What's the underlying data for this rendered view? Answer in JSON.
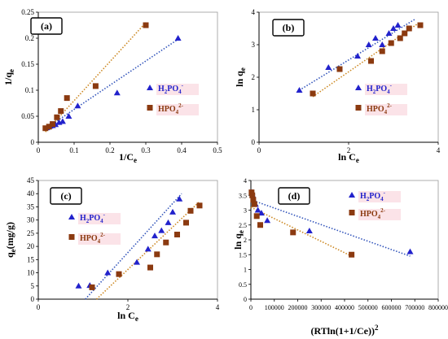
{
  "figure": {
    "colors": {
      "blue": "#2222cc",
      "brown": "#8b3a10",
      "blue_line": "#3355bb",
      "brown_line": "#cc8822",
      "label_bg": "#fbe3e8"
    }
  },
  "chart_data": [
    {
      "id": "a",
      "type": "scatter",
      "panel_label": "(a)",
      "xlabel": "1/C",
      "xlabel_sub": "e",
      "ylabel": "1/q",
      "ylabel_sub": "e",
      "xlim": [
        0,
        0.5
      ],
      "ylim": [
        0,
        0.25
      ],
      "xticks": [
        0,
        0.1,
        0.2,
        0.3,
        0.4,
        0.5
      ],
      "xtick_labels": [
        "0",
        "0.1",
        "0.2",
        "0.3",
        "0.4",
        "0.5"
      ],
      "yticks": [
        0,
        0.05,
        0.1,
        0.15,
        0.2,
        0.25
      ],
      "ytick_labels": [
        "0",
        "0.05",
        "0.1",
        "0.15",
        "0.2",
        "0.25"
      ],
      "legend": [
        {
          "label": "H",
          "sub1": "2",
          "mid": "PO",
          "sub2": "4",
          "sup": "-",
          "marker": "triangle",
          "color": "#2222cc"
        },
        {
          "label": "HPO",
          "sub1": "4",
          "mid": "",
          "sub2": "",
          "sup": "2-",
          "marker": "square",
          "color": "#8b3a10"
        }
      ],
      "series": [
        {
          "name": "H2PO4-",
          "marker": "triangle",
          "color": "#2222cc",
          "x": [
            0.024,
            0.033,
            0.04,
            0.048,
            0.058,
            0.068,
            0.085,
            0.11,
            0.22,
            0.39
          ],
          "y": [
            0.028,
            0.031,
            0.032,
            0.034,
            0.038,
            0.04,
            0.05,
            0.07,
            0.095,
            0.2
          ]
        },
        {
          "name": "HPO42-",
          "marker": "square",
          "color": "#8b3a10",
          "x": [
            0.02,
            0.03,
            0.04,
            0.052,
            0.063,
            0.08,
            0.16,
            0.3
          ],
          "y": [
            0.027,
            0.03,
            0.035,
            0.048,
            0.06,
            0.085,
            0.108,
            0.225
          ]
        }
      ],
      "trendlines": [
        {
          "color": "#3355bb",
          "x": [
            0.02,
            0.39
          ],
          "y": [
            0.026,
            0.198
          ]
        },
        {
          "color": "#cc8822",
          "x": [
            0.02,
            0.3
          ],
          "y": [
            0.02,
            0.23
          ]
        }
      ]
    },
    {
      "id": "b",
      "type": "scatter",
      "panel_label": "(b)",
      "xlabel": "ln C",
      "xlabel_sub": "e",
      "ylabel": "ln q",
      "ylabel_sub": "e",
      "xlim": [
        0,
        4
      ],
      "ylim": [
        0,
        4
      ],
      "xticks": [
        0,
        2,
        4
      ],
      "xtick_labels": [
        "0",
        "2",
        "4"
      ],
      "yticks": [
        0,
        1,
        2,
        3,
        4
      ],
      "ytick_labels": [
        "0",
        "1",
        "2",
        "3",
        "4"
      ],
      "legend": [
        {
          "label": "H",
          "sub1": "2",
          "mid": "PO",
          "sub2": "4",
          "sup": "-",
          "marker": "triangle",
          "color": "#2222cc"
        },
        {
          "label": "HPO",
          "sub1": "4",
          "mid": "",
          "sub2": "",
          "sup": "2-",
          "marker": "square",
          "color": "#8b3a10"
        }
      ],
      "series": [
        {
          "name": "H2PO4-",
          "marker": "triangle",
          "color": "#2222cc",
          "x": [
            0.9,
            1.55,
            2.2,
            2.45,
            2.6,
            2.75,
            2.9,
            3.0,
            3.1
          ],
          "y": [
            1.6,
            2.3,
            2.65,
            3.0,
            3.2,
            3.0,
            3.35,
            3.5,
            3.6
          ]
        },
        {
          "name": "HPO42-",
          "marker": "square",
          "color": "#8b3a10",
          "x": [
            1.2,
            1.8,
            2.5,
            2.75,
            2.95,
            3.15,
            3.25,
            3.35,
            3.6
          ],
          "y": [
            1.5,
            2.25,
            2.5,
            2.8,
            3.05,
            3.2,
            3.35,
            3.5,
            3.6
          ]
        }
      ],
      "trendlines": [
        {
          "color": "#3355bb",
          "x": [
            0.9,
            3.5
          ],
          "y": [
            1.6,
            3.8
          ]
        },
        {
          "color": "#cc8822",
          "x": [
            1.2,
            3.6
          ],
          "y": [
            1.4,
            3.7
          ]
        }
      ]
    },
    {
      "id": "c",
      "type": "scatter",
      "panel_label": "(c)",
      "xlabel": "ln C",
      "xlabel_sub": "e",
      "ylabel": "q",
      "ylabel_sub": "e",
      "ylabel_suffix": "(mg/g)",
      "xlim": [
        0,
        4
      ],
      "ylim": [
        0,
        45
      ],
      "xticks": [
        0,
        2,
        4
      ],
      "xtick_labels": [
        "0",
        "2",
        "4"
      ],
      "yticks": [
        0,
        5,
        10,
        15,
        20,
        25,
        30,
        35,
        40,
        45
      ],
      "ytick_labels": [
        "0",
        "5",
        "10",
        "15",
        "20",
        "25",
        "30",
        "35",
        "40",
        "45"
      ],
      "legend": [
        {
          "label": "H",
          "sub1": "2",
          "mid": "PO",
          "sub2": "4",
          "sup": "-",
          "marker": "triangle",
          "color": "#2222cc"
        },
        {
          "label": "HPO",
          "sub1": "4",
          "mid": "",
          "sub2": "",
          "sup": "2-",
          "marker": "square",
          "color": "#8b3a10"
        }
      ],
      "series": [
        {
          "name": "H2PO4-",
          "marker": "triangle",
          "color": "#2222cc",
          "x": [
            0.9,
            1.15,
            1.55,
            2.2,
            2.45,
            2.6,
            2.75,
            2.9,
            3.0,
            3.15
          ],
          "y": [
            5,
            5.2,
            10,
            14,
            19,
            24,
            26,
            29,
            33,
            38
          ]
        },
        {
          "name": "HPO42-",
          "marker": "square",
          "color": "#8b3a10",
          "x": [
            1.2,
            1.8,
            2.5,
            2.65,
            2.85,
            3.1,
            3.3,
            3.4,
            3.6
          ],
          "y": [
            4.5,
            9.5,
            12,
            17,
            21.5,
            24.5,
            29,
            33.5,
            35.5
          ]
        }
      ],
      "trendlines": [
        {
          "color": "#3355bb",
          "x": [
            1.05,
            3.2
          ],
          "y": [
            0,
            40
          ]
        },
        {
          "color": "#cc8822",
          "x": [
            1.3,
            3.6
          ],
          "y": [
            0,
            37
          ]
        }
      ]
    },
    {
      "id": "d",
      "type": "scatter",
      "panel_label": "(d)",
      "xlabel": "(RTln(1+1/Ce))",
      "xlabel_sup": "2",
      "ylabel": "ln q",
      "ylabel_sub": "e",
      "xlim": [
        0,
        800000
      ],
      "ylim": [
        0,
        4
      ],
      "xticks": [
        0,
        100000,
        200000,
        300000,
        400000,
        500000,
        600000,
        700000,
        800000
      ],
      "xtick_labels": [
        "0",
        "100000",
        "200000",
        "300000",
        "400000",
        "500000",
        "600000",
        "700000",
        "800000"
      ],
      "yticks": [
        0,
        0.5,
        1,
        1.5,
        2,
        2.5,
        3,
        3.5,
        4
      ],
      "ytick_labels": [
        "0",
        "0.5",
        "1",
        "1.5",
        "2",
        "2.5",
        "3",
        "3.5",
        "4"
      ],
      "legend": [
        {
          "label": "H",
          "sub1": "2",
          "mid": "PO",
          "sub2": "4",
          "sup": "-",
          "marker": "triangle",
          "color": "#2222cc"
        },
        {
          "label": "HPO",
          "sub1": "4",
          "mid": "",
          "sub2": "",
          "sup": "2-",
          "marker": "square",
          "color": "#8b3a10"
        }
      ],
      "series": [
        {
          "name": "H2PO4-",
          "marker": "triangle",
          "color": "#2222cc",
          "x": [
            5000,
            8000,
            12000,
            20000,
            30000,
            45000,
            70000,
            250000,
            680000
          ],
          "y": [
            3.6,
            3.5,
            3.35,
            3.2,
            3.0,
            2.9,
            2.65,
            2.3,
            1.6
          ]
        },
        {
          "name": "HPO42-",
          "marker": "square",
          "color": "#8b3a10",
          "x": [
            3000,
            6000,
            10000,
            15000,
            25000,
            40000,
            180000,
            430000
          ],
          "y": [
            3.6,
            3.5,
            3.35,
            3.2,
            2.8,
            2.5,
            2.25,
            1.5
          ]
        }
      ],
      "trendlines": [
        {
          "color": "#3355bb",
          "x": [
            0,
            680000
          ],
          "y": [
            3.35,
            1.45
          ]
        },
        {
          "color": "#cc8822",
          "x": [
            0,
            430000
          ],
          "y": [
            3.1,
            1.45
          ]
        }
      ]
    }
  ]
}
